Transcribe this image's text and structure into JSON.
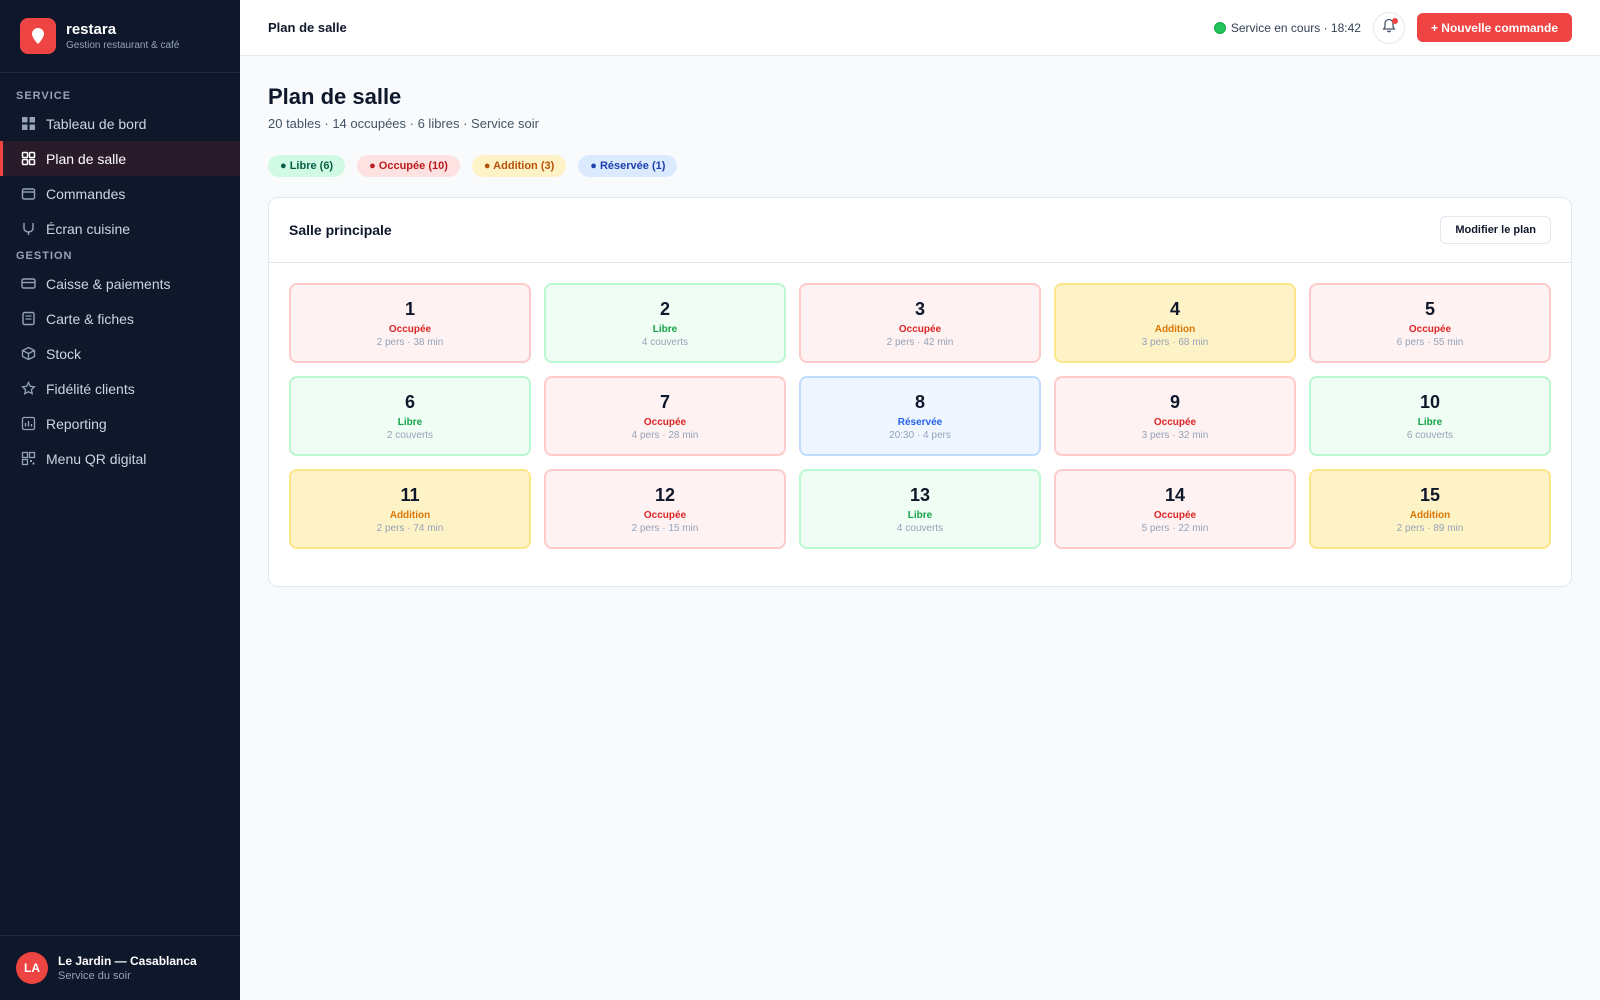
{
  "brand": {
    "name": "restara",
    "subtitle": "Gestion restaurant & café",
    "icon": "map-pin-icon",
    "accent": "#ef4444"
  },
  "sidebar": {
    "sections": [
      {
        "label": "SERVICE",
        "items": [
          {
            "label": "Tableau de bord",
            "icon": "dashboard-icon",
            "active": false
          },
          {
            "label": "Plan de salle",
            "icon": "floor-plan-icon",
            "active": true
          },
          {
            "label": "Commandes",
            "icon": "orders-icon",
            "active": false
          },
          {
            "label": "Écran cuisine",
            "icon": "kitchen-icon",
            "active": false
          }
        ]
      },
      {
        "label": "GESTION",
        "items": [
          {
            "label": "Caisse & paiements",
            "icon": "card-icon",
            "active": false
          },
          {
            "label": "Carte & fiches",
            "icon": "menu-card-icon",
            "active": false
          },
          {
            "label": "Stock",
            "icon": "box-icon",
            "active": false
          },
          {
            "label": "Fidélité clients",
            "icon": "star-icon",
            "active": false
          },
          {
            "label": "Reporting",
            "icon": "chart-icon",
            "active": false
          },
          {
            "label": "Menu QR digital",
            "icon": "qr-icon",
            "active": false
          }
        ]
      }
    ],
    "footer": {
      "initials": "LA",
      "venue": "Le Jardin — Casablanca",
      "subtitle": "Service du soir"
    }
  },
  "topbar": {
    "title": "Plan de salle",
    "status": "Service en cours · 18:42",
    "new_order": "+ Nouvelle commande"
  },
  "page": {
    "title": "Plan de salle",
    "subtitle": "20 tables · 14 occupées · 6 libres · Service soir",
    "legend": [
      {
        "label": "● Libre (6)",
        "kind": "libre"
      },
      {
        "label": "● Occupée (10)",
        "kind": "occupee"
      },
      {
        "label": "● Addition (3)",
        "kind": "addition"
      },
      {
        "label": "● Réservée (1)",
        "kind": "reservee"
      }
    ]
  },
  "panel": {
    "title": "Salle principale",
    "edit_label": "Modifier le plan",
    "tables": [
      {
        "number": "1",
        "status": "Occupée",
        "kind": "occupee",
        "info": "2 pers · 38 min"
      },
      {
        "number": "2",
        "status": "Libre",
        "kind": "libre",
        "info": "4 couverts"
      },
      {
        "number": "3",
        "status": "Occupée",
        "kind": "occupee",
        "info": "2 pers · 42 min"
      },
      {
        "number": "4",
        "status": "Addition",
        "kind": "addition",
        "info": "3 pers · 68 min"
      },
      {
        "number": "5",
        "status": "Occupée",
        "kind": "occupee",
        "info": "6 pers · 55 min"
      },
      {
        "number": "6",
        "status": "Libre",
        "kind": "libre",
        "info": "2 couverts"
      },
      {
        "number": "7",
        "status": "Occupée",
        "kind": "occupee",
        "info": "4 pers · 28 min"
      },
      {
        "number": "8",
        "status": "Réservée",
        "kind": "reservee",
        "info": "20:30 · 4 pers"
      },
      {
        "number": "9",
        "status": "Occupée",
        "kind": "occupee",
        "info": "3 pers · 32 min"
      },
      {
        "number": "10",
        "status": "Libre",
        "kind": "libre",
        "info": "6 couverts"
      },
      {
        "number": "11",
        "status": "Addition",
        "kind": "addition",
        "info": "2 pers · 74 min"
      },
      {
        "number": "12",
        "status": "Occupée",
        "kind": "occupee",
        "info": "2 pers · 15 min"
      },
      {
        "number": "13",
        "status": "Libre",
        "kind": "libre",
        "info": "4 couverts"
      },
      {
        "number": "14",
        "status": "Occupée",
        "kind": "occupee",
        "info": "5 pers · 22 min"
      },
      {
        "number": "15",
        "status": "Addition",
        "kind": "addition",
        "info": "2 pers · 89 min"
      }
    ]
  }
}
